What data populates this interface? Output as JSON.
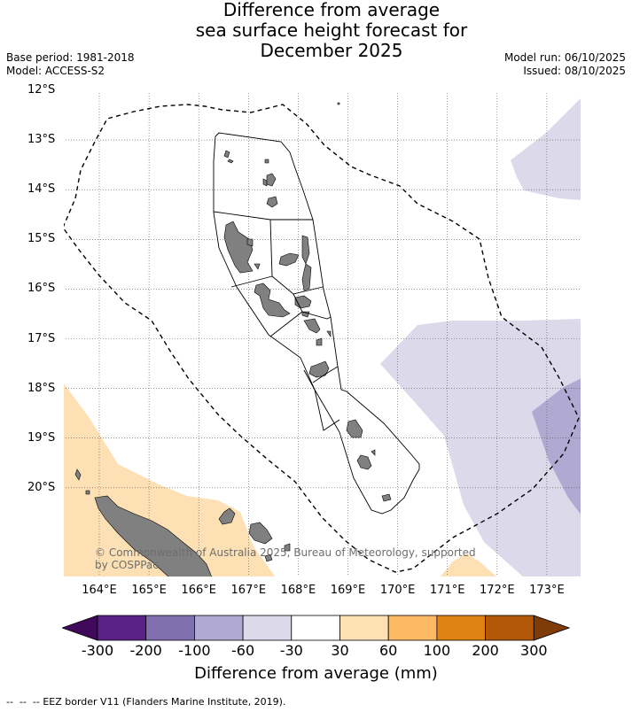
{
  "title": {
    "line1": "Difference from average",
    "line2": "sea surface height forecast for",
    "line3": "December 2025"
  },
  "meta": {
    "base_period": "Base period: 1981-2018",
    "model": "Model: ACCESS-S2",
    "model_run": "Model run: 06/10/2025",
    "issued": "Issued: 08/10/2025"
  },
  "axes": {
    "lat_labels": [
      "12°S",
      "13°S",
      "14°S",
      "15°S",
      "16°S",
      "17°S",
      "18°S",
      "19°S",
      "20°S"
    ],
    "lon_labels": [
      "164°E",
      "165°E",
      "166°E",
      "167°E",
      "168°E",
      "169°E",
      "170°E",
      "171°E",
      "172°E",
      "173°E"
    ],
    "lat_range": [
      -21.8,
      -12.0
    ],
    "lon_range": [
      163.3,
      173.7
    ]
  },
  "map": {
    "region": "Vanuatu",
    "legend_eez": "EEZ border V11 (Flanders Marine Institute, 2019)."
  },
  "copyright": {
    "line1": "© Commonwealth of Australia 2025, Bureau of Meteorology, supported",
    "line2": "by COSPPac"
  },
  "colorbar": {
    "label": "Difference from average (mm)",
    "ticks": [
      "-300",
      "-200",
      "-100",
      "-60",
      "-30",
      "30",
      "60",
      "100",
      "200",
      "300"
    ],
    "colors": [
      "#3f0a59",
      "#5a2186",
      "#8070ae",
      "#b0a9d1",
      "#dcd9ea",
      "#ffffff",
      "#fde0b4",
      "#fdb863",
      "#e08214",
      "#b35806",
      "#7f3b08"
    ],
    "palette": {
      "light_purple": "#dcd9ea",
      "mid_purple": "#b0a9d1",
      "light_orange": "#fde0b4",
      "land": "#808080"
    }
  }
}
